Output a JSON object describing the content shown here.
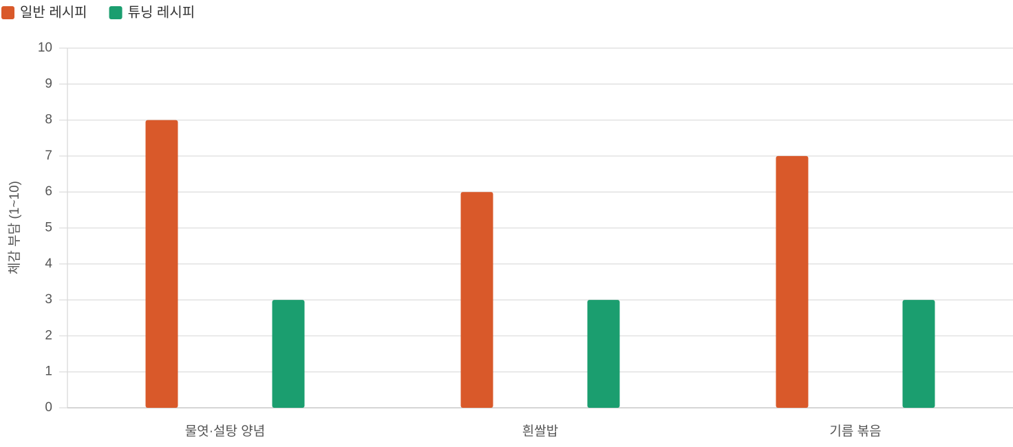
{
  "chart_data": {
    "type": "bar",
    "y_label": "체감 부담 (1~10)",
    "categories": [
      "물엿·설탕 양념",
      "흰쌀밥",
      "기름 볶음"
    ],
    "series": [
      {
        "name": "일반 레시피",
        "color": "#d9592a",
        "values": [
          8,
          6,
          7
        ]
      },
      {
        "name": "튜닝 레시피",
        "color": "#1b9e6f",
        "values": [
          3,
          3,
          3
        ]
      }
    ],
    "ylim": [
      0,
      10
    ],
    "yticks": [
      0,
      1,
      2,
      3,
      4,
      5,
      6,
      7,
      8,
      9,
      10
    ],
    "grid": true,
    "legend": "top-left"
  }
}
